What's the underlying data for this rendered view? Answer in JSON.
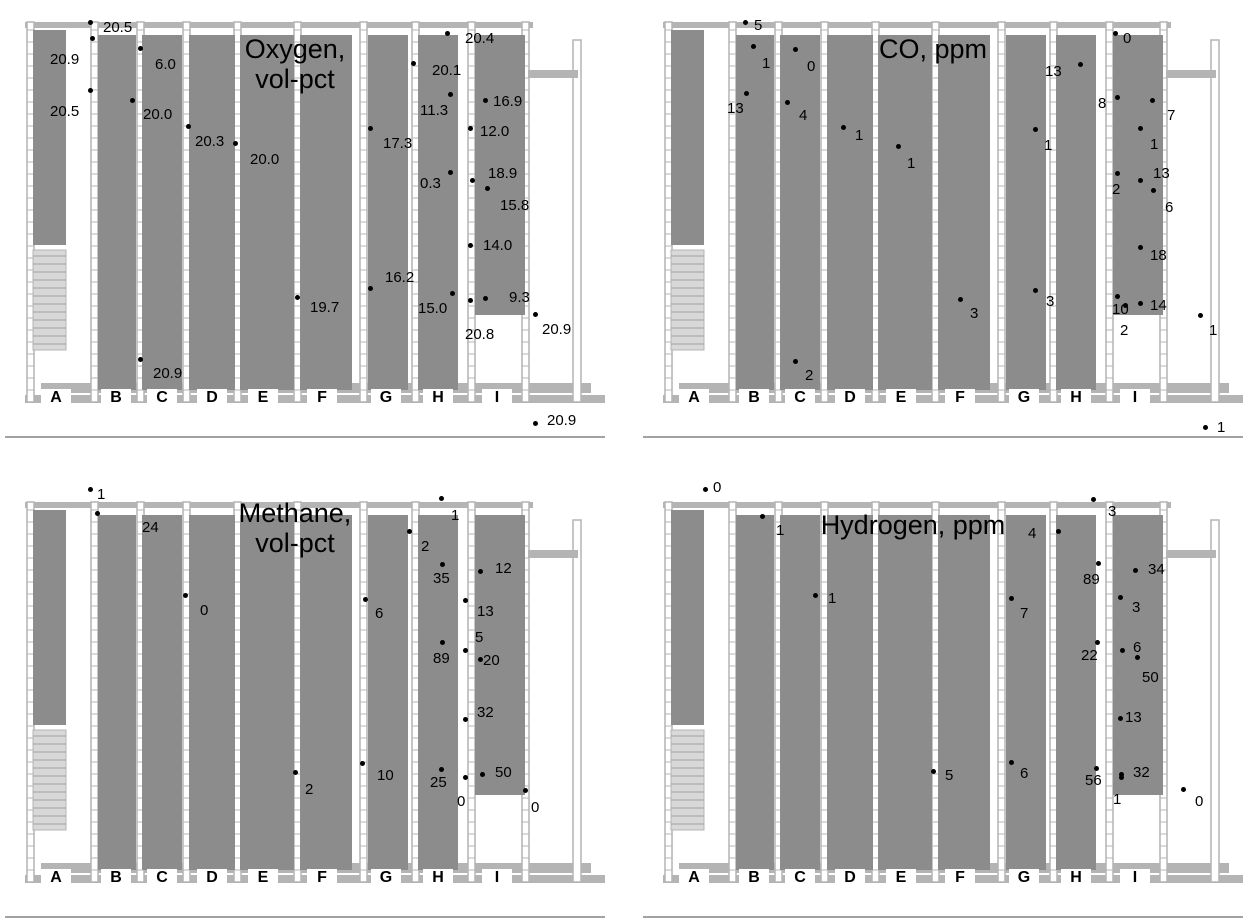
{
  "entries": [
    "A",
    "B",
    "C",
    "D",
    "E",
    "F",
    "G",
    "H",
    "I"
  ],
  "colors": {
    "panel": "#8c8c8c",
    "wall": "#b4b4b4",
    "pillar": "#ffffff",
    "text": "#000000"
  },
  "panels": [
    {
      "id": "oxygen",
      "title_lines": [
        "Oxygen,",
        "vol-pct"
      ],
      "readings": [
        "20.5",
        "20.9",
        "6.0",
        "20.5",
        "20.0",
        "20.3",
        "20.0",
        "20.4",
        "20.1",
        "11.3",
        "16.9",
        "12.0",
        "17.3",
        "0.3",
        "18.9",
        "15.8",
        "14.0",
        "16.2",
        "19.7",
        "15.0",
        "9.3",
        "20.8",
        "20.9",
        "20.9",
        "20.9"
      ]
    },
    {
      "id": "co",
      "title_lines": [
        "CO, ppm"
      ],
      "readings": [
        "5",
        "1",
        "0",
        "13",
        "4",
        "1",
        "1",
        "0",
        "13",
        "8",
        "7",
        "1",
        "1",
        "2",
        "13",
        "6",
        "18",
        "3",
        "3",
        "10",
        "14",
        "2",
        "1",
        "2",
        "1"
      ]
    },
    {
      "id": "methane",
      "title_lines": [
        "Methane,",
        "vol-pct"
      ],
      "readings": [
        "1",
        "24",
        "0",
        "1",
        "2",
        "35",
        "12",
        "6",
        "13",
        "89",
        "5",
        "20",
        "32",
        "2",
        "10",
        "25",
        "50",
        "0",
        "0"
      ]
    },
    {
      "id": "hydrogen",
      "title_lines": [
        "Hydrogen, ppm"
      ],
      "readings": [
        "0",
        "1",
        "4",
        "3",
        "1",
        "89",
        "34",
        "7",
        "3",
        "22",
        "6",
        "50",
        "13",
        "5",
        "6",
        "56",
        "32",
        "1",
        "0"
      ]
    }
  ]
}
